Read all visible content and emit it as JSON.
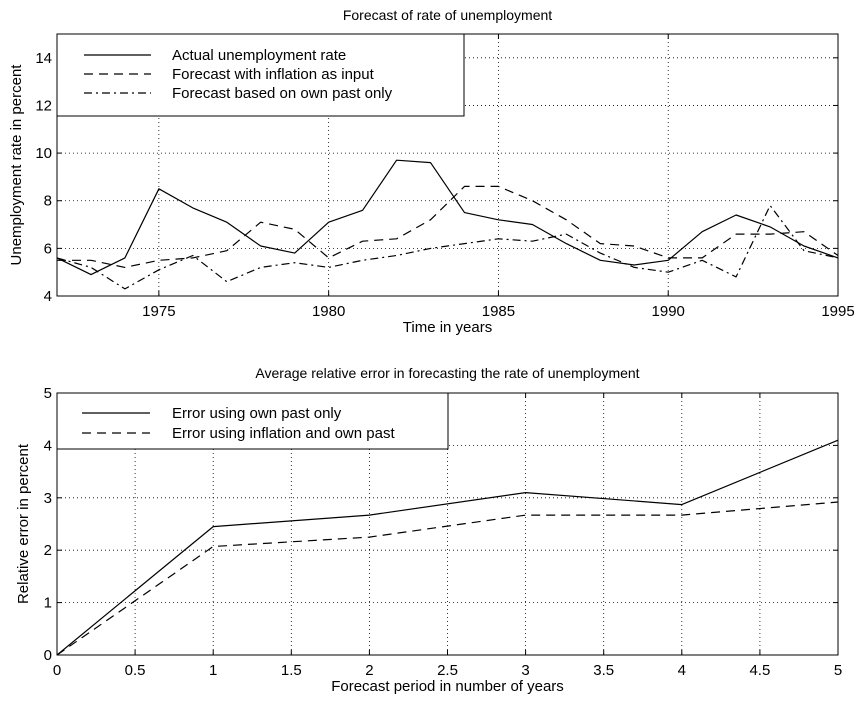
{
  "chart_data": [
    {
      "type": "line",
      "title": "Forecast of rate of unemployment",
      "xlabel": "Time in years",
      "ylabel": "Unemployment rate in percent",
      "xlim": [
        1972,
        1995
      ],
      "ylim": [
        4,
        15
      ],
      "xticks": [
        1975,
        1980,
        1985,
        1990,
        1995
      ],
      "yticks": [
        4,
        6,
        8,
        10,
        12,
        14
      ],
      "grid": true,
      "legend_position": "top-left",
      "x": [
        1972,
        1973,
        1974,
        1975,
        1976,
        1977,
        1978,
        1979,
        1980,
        1981,
        1982,
        1983,
        1984,
        1985,
        1986,
        1987,
        1988,
        1989,
        1990,
        1991,
        1992,
        1993,
        1994,
        1995
      ],
      "series": [
        {
          "name": "Actual unemployment rate",
          "style": "solid",
          "values": [
            5.6,
            4.9,
            5.6,
            8.5,
            7.7,
            7.1,
            6.1,
            5.8,
            7.1,
            7.6,
            9.7,
            9.6,
            7.5,
            7.2,
            7.0,
            6.2,
            5.5,
            5.3,
            5.5,
            6.7,
            7.4,
            6.9,
            6.1,
            5.6
          ]
        },
        {
          "name": "Forecast with inflation as input",
          "style": "dashed",
          "values": [
            5.5,
            5.5,
            5.2,
            5.5,
            5.6,
            5.9,
            7.1,
            6.8,
            5.6,
            6.3,
            6.4,
            7.2,
            8.6,
            8.6,
            8.0,
            7.2,
            6.2,
            6.1,
            5.6,
            5.6,
            6.6,
            6.6,
            6.7,
            5.7
          ]
        },
        {
          "name": "Forecast based on own past only",
          "style": "dashdot",
          "values": [
            5.6,
            5.2,
            4.3,
            5.1,
            5.7,
            4.6,
            5.2,
            5.4,
            5.2,
            5.5,
            5.7,
            6.0,
            6.2,
            6.4,
            6.3,
            6.6,
            5.8,
            5.2,
            5.0,
            5.5,
            4.8,
            7.8,
            5.9,
            5.6
          ]
        }
      ]
    },
    {
      "type": "line",
      "title": "Average relative error in forecasting the rate of unemployment",
      "xlabel": "Forecast period in number of years",
      "ylabel": "Relative error in percent",
      "xlim": [
        0,
        5
      ],
      "ylim": [
        0,
        5
      ],
      "xticks": [
        0,
        0.5,
        1,
        1.5,
        2,
        2.5,
        3,
        3.5,
        4,
        4.5,
        5
      ],
      "yticks": [
        0,
        1,
        2,
        3,
        4,
        5
      ],
      "grid": true,
      "legend_position": "top-left",
      "x": [
        0,
        1,
        2,
        3,
        4,
        5
      ],
      "series": [
        {
          "name": "Error using own past only",
          "style": "solid",
          "values": [
            0,
            2.45,
            2.67,
            3.1,
            2.87,
            4.1
          ]
        },
        {
          "name": "Error using inflation and own past",
          "style": "dashed",
          "values": [
            0,
            2.07,
            2.25,
            2.67,
            2.67,
            2.92
          ]
        }
      ]
    }
  ]
}
